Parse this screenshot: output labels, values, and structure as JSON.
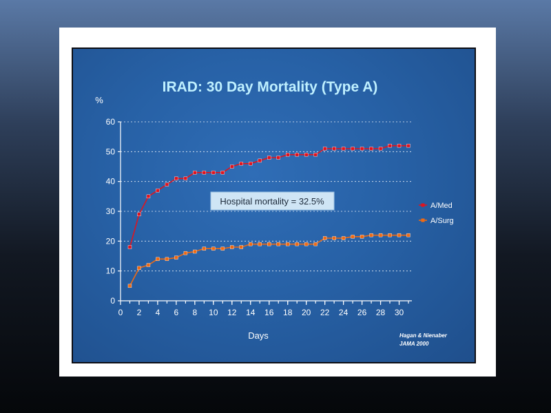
{
  "chart_data": {
    "type": "line",
    "title": "IRAD: 30 Day Mortality (Type A)",
    "ylabel": "%",
    "xlabel": "Days",
    "xlim": [
      0,
      31
    ],
    "ylim": [
      0,
      60
    ],
    "x_ticks": [
      0,
      2,
      4,
      6,
      8,
      10,
      12,
      14,
      16,
      18,
      20,
      22,
      24,
      26,
      28,
      30
    ],
    "y_ticks": [
      0,
      10,
      20,
      30,
      40,
      50,
      60
    ],
    "grid": "horizontal dotted",
    "legend_position": "right",
    "annotation": "Hospital mortality = 32.5%",
    "source_note": [
      "Hagan & Nienaber",
      "JAMA 2000"
    ],
    "x": [
      1,
      2,
      3,
      4,
      5,
      6,
      7,
      8,
      9,
      10,
      11,
      12,
      13,
      14,
      15,
      16,
      17,
      18,
      19,
      20,
      21,
      22,
      23,
      24,
      25,
      26,
      27,
      28,
      29,
      30,
      31
    ],
    "series": [
      {
        "name": "A/Med",
        "color": "#e0141e",
        "values": [
          18,
          29,
          35,
          37,
          39,
          41,
          41,
          43,
          43,
          43,
          43,
          45,
          46,
          46,
          47,
          48,
          48,
          49,
          49,
          49,
          49,
          51,
          51,
          51,
          51,
          51,
          51,
          51,
          52,
          52,
          52
        ]
      },
      {
        "name": "A/Surg",
        "color": "#f06a12",
        "values": [
          5,
          11,
          12,
          14,
          14,
          14.5,
          16,
          16.5,
          17.5,
          17.5,
          17.5,
          18,
          18,
          19,
          19,
          19,
          19,
          19,
          19,
          19,
          19,
          21,
          21,
          21,
          21.5,
          21.5,
          22,
          22,
          22,
          22,
          22
        ]
      }
    ]
  }
}
